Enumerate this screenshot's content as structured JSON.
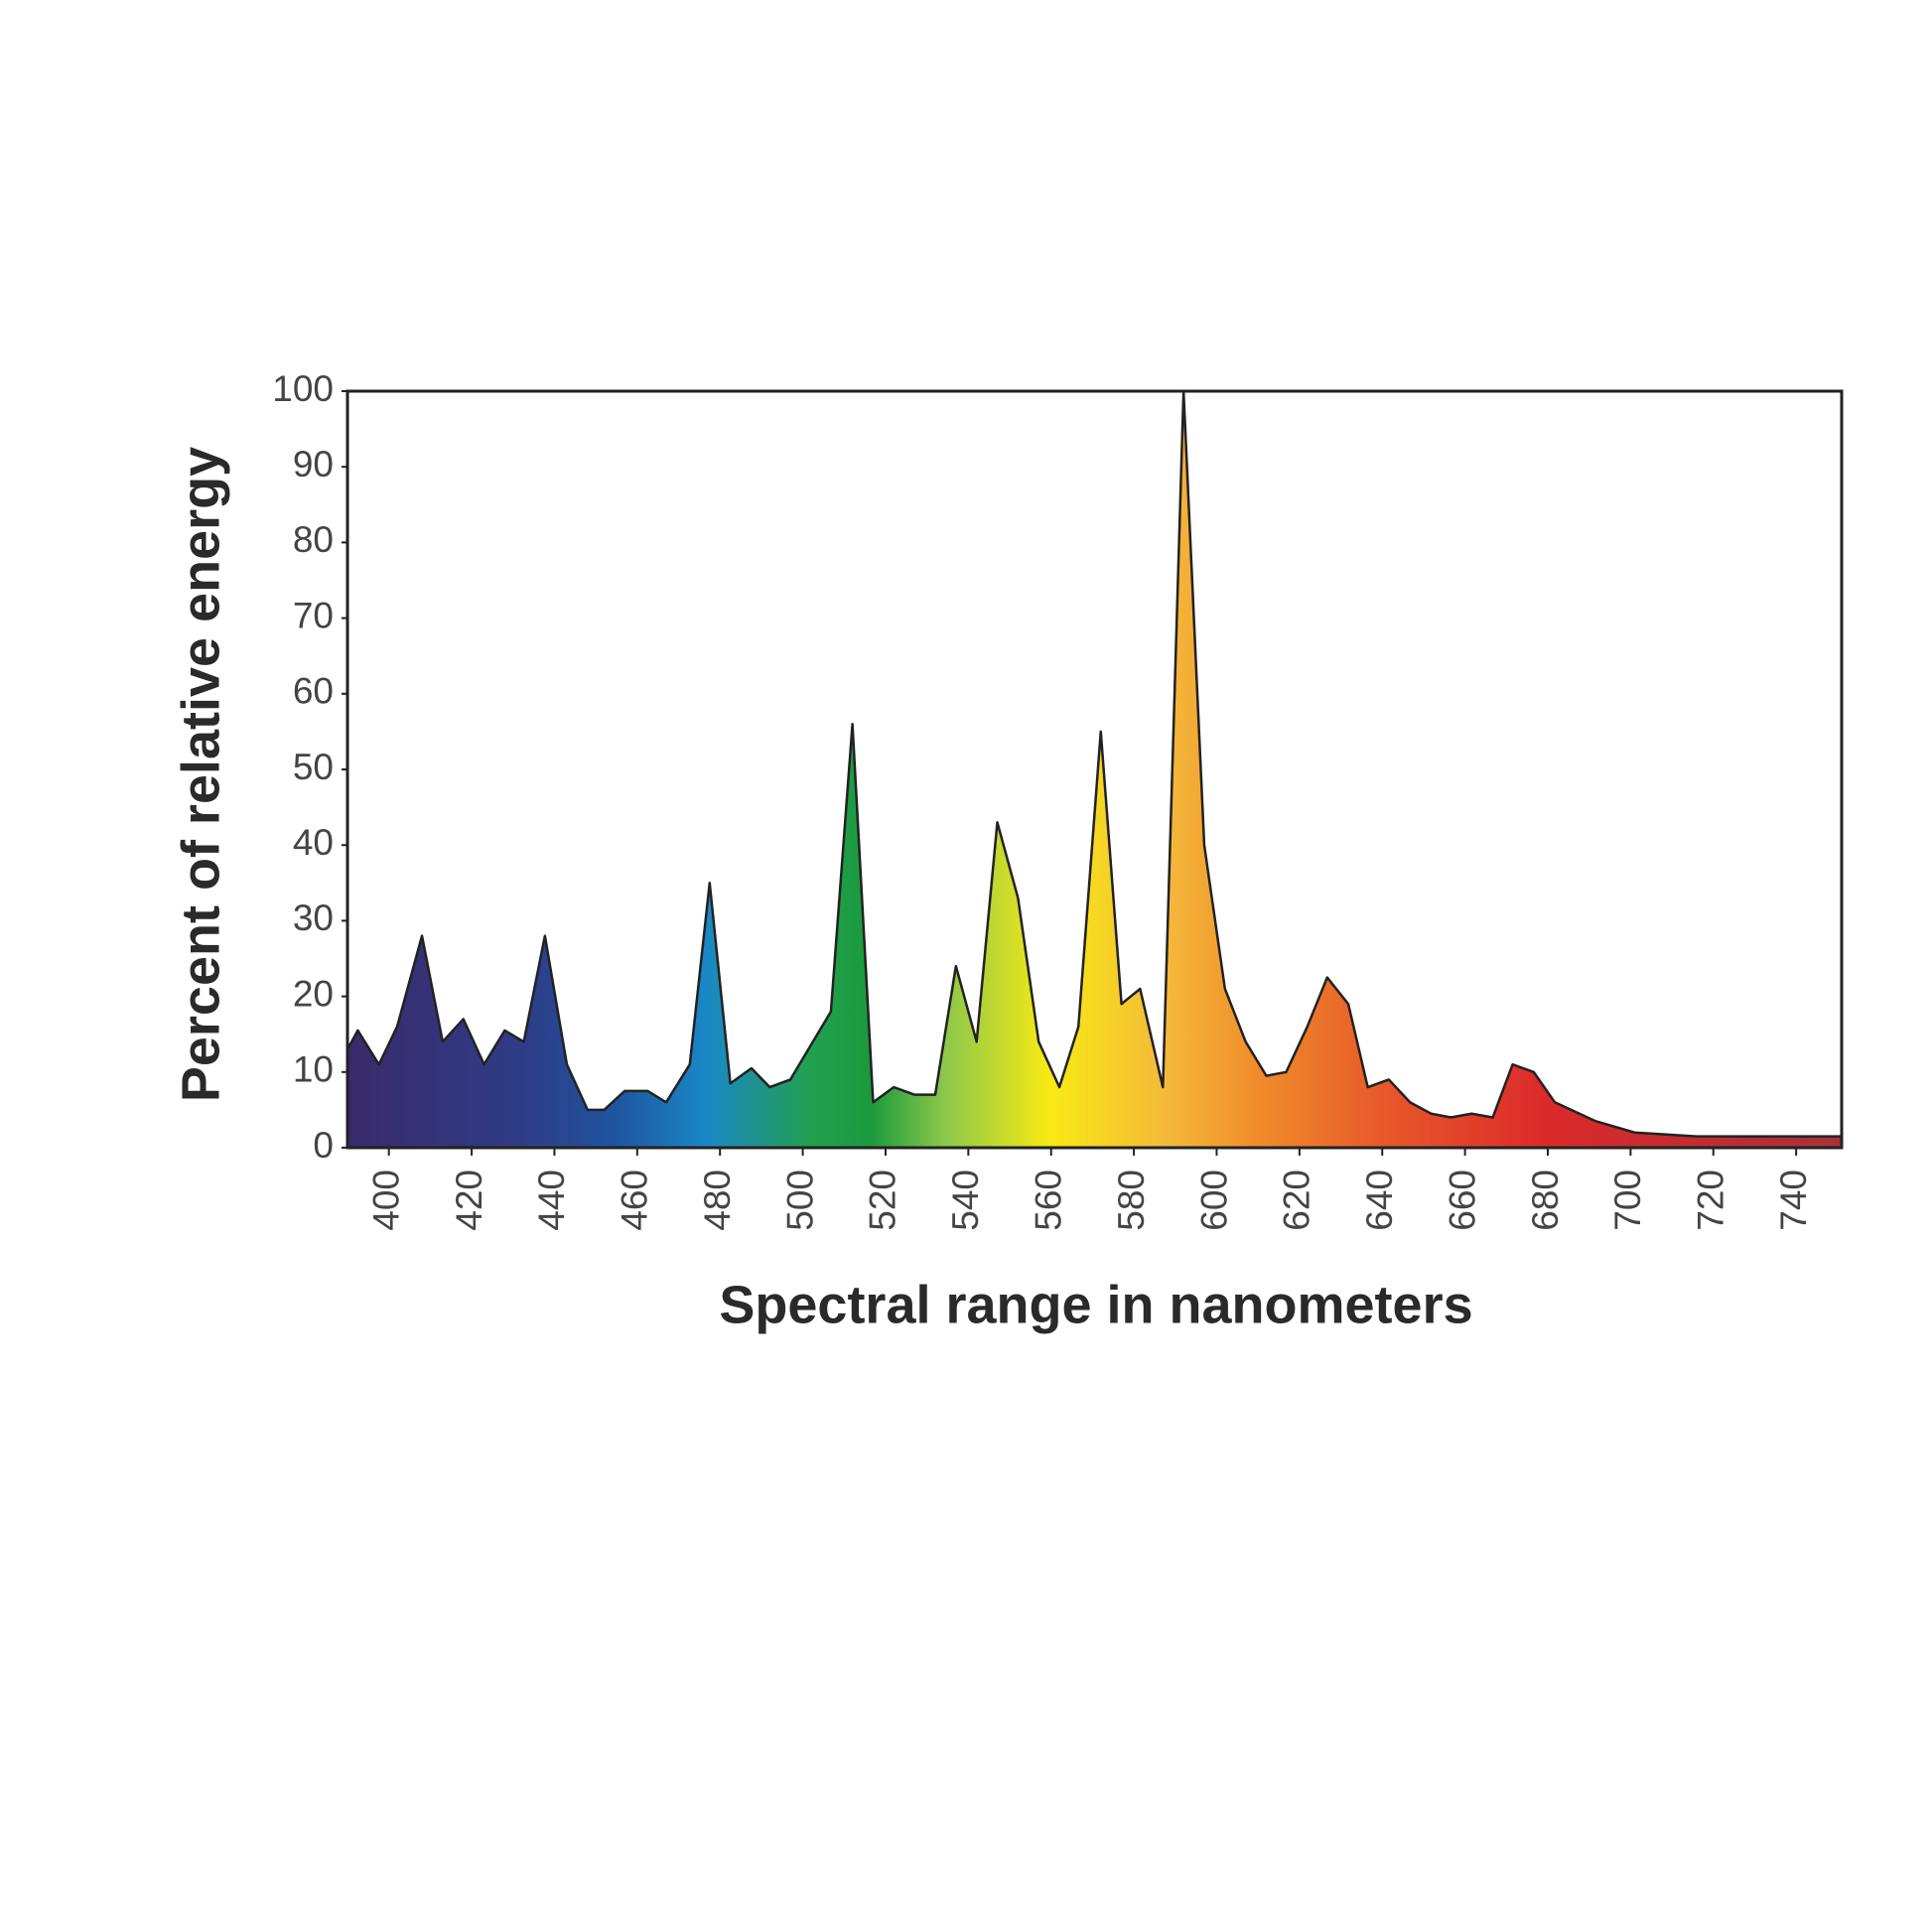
{
  "chart_data": {
    "type": "area",
    "x_label": "Spectral range in nanometers",
    "y_label": "Percent of relative energy",
    "x": [
      390,
      392.5,
      397.6,
      402,
      408,
      413,
      418,
      423,
      428,
      432.6,
      437.7,
      443,
      448,
      452,
      457,
      462.5,
      467,
      472.7,
      477.5,
      482.5,
      487.6,
      492,
      497,
      506.8,
      512,
      517,
      522,
      527,
      532,
      537,
      542,
      547,
      552,
      557,
      562,
      566.6,
      572,
      577,
      581.5,
      587,
      592,
      597,
      602,
      607,
      612,
      616.8,
      621.9,
      626.7,
      631.8,
      636.5,
      641.6,
      646.7,
      651.8,
      656.6,
      661.6,
      666.7,
      671.5,
      676.6,
      681.7,
      691.6,
      701,
      716,
      731,
      751
    ],
    "values": [
      13,
      15.5,
      11,
      16,
      28,
      14,
      17,
      11,
      15.5,
      14,
      28,
      11,
      5,
      5,
      7.5,
      7.5,
      6,
      11,
      35,
      8.5,
      10.5,
      8,
      9,
      18,
      56,
      6,
      8,
      7,
      7,
      24,
      14,
      43,
      33,
      14,
      8,
      16,
      55,
      19,
      21,
      8,
      100,
      40,
      21,
      14,
      9.5,
      10,
      16,
      22.5,
      19,
      8,
      9,
      6,
      4.5,
      4,
      4.5,
      4,
      11,
      10,
      6,
      3.5,
      2,
      1.5,
      1.5,
      1.5
    ],
    "line_color": "#222222",
    "xlim": [
      390,
      751
    ],
    "ylim": [
      0,
      100
    ],
    "xticks": [
      400,
      420,
      440,
      460,
      480,
      500,
      520,
      540,
      560,
      580,
      600,
      620,
      640,
      660,
      680,
      700,
      720,
      740
    ],
    "yticks": [
      0,
      10,
      20,
      30,
      40,
      50,
      60,
      70,
      80,
      90,
      100
    ]
  }
}
